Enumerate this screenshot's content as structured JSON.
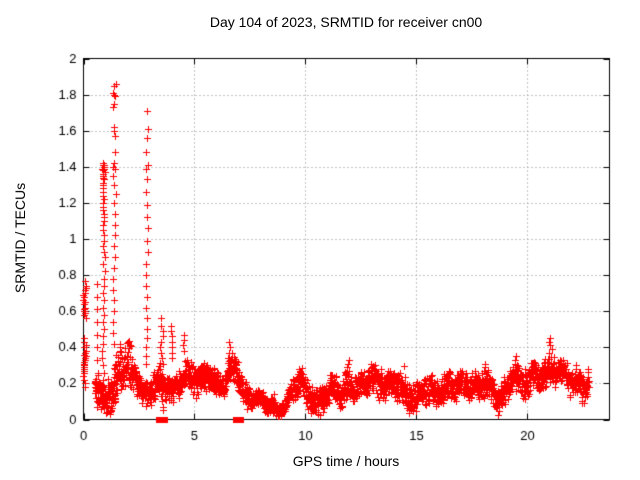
{
  "chart_data": {
    "type": "scatter",
    "title": "Day 104 of 2023, SRMTID for receiver cn00",
    "xlabel": "GPS time / hours",
    "ylabel": "SRMTID / TECUs",
    "xlim": [
      0,
      23.7
    ],
    "ylim": [
      0,
      2
    ],
    "grid": true,
    "legend": "none",
    "marker": {
      "shape": "plus",
      "color": "#ff0000",
      "size": 7
    },
    "x_ticks": {
      "values": [
        0,
        5,
        10,
        15,
        20
      ],
      "labels": [
        "0",
        "5",
        "10",
        "15",
        "20"
      ]
    },
    "y_ticks": {
      "values": [
        0,
        0.2,
        0.4,
        0.6,
        0.8,
        1.0,
        1.2,
        1.4,
        1.6,
        1.8,
        2.0
      ],
      "labels": [
        "0",
        "0.2",
        "0.4",
        "0.6",
        "0.8",
        "1",
        "1.2",
        "1.4",
        "1.6",
        "1.8",
        "2"
      ]
    },
    "band": {
      "comment_visible_fact": "dense noisy band of ~30s samples from 0.5h to 22.8h between roughly 0.05 and 0.35 TECU",
      "x_start": 0.5,
      "x_end": 22.78,
      "dt": 0.008333,
      "noise_default": 0.09,
      "noise_regions": [
        {
          "x1": 1.05,
          "x2": 2.15,
          "s": 0.16
        },
        {
          "x1": 7.5,
          "x2": 9.4,
          "s": 0.05
        }
      ],
      "mean_keypoints": [
        [
          0.5,
          0.2
        ],
        [
          0.75,
          0.13
        ],
        [
          1.0,
          0.12
        ],
        [
          1.3,
          0.16
        ],
        [
          1.6,
          0.28
        ],
        [
          2.0,
          0.28
        ],
        [
          2.3,
          0.24
        ],
        [
          2.6,
          0.17
        ],
        [
          3.0,
          0.16
        ],
        [
          3.3,
          0.21
        ],
        [
          3.6,
          0.18
        ],
        [
          3.9,
          0.16
        ],
        [
          4.2,
          0.21
        ],
        [
          4.5,
          0.27
        ],
        [
          4.8,
          0.23
        ],
        [
          5.1,
          0.19
        ],
        [
          5.4,
          0.25
        ],
        [
          5.7,
          0.26
        ],
        [
          6.0,
          0.21
        ],
        [
          6.3,
          0.17
        ],
        [
          6.6,
          0.24
        ],
        [
          6.85,
          0.29
        ],
        [
          7.1,
          0.22
        ],
        [
          7.4,
          0.14
        ],
        [
          7.8,
          0.11
        ],
        [
          8.2,
          0.08
        ],
        [
          8.7,
          0.07
        ],
        [
          9.1,
          0.09
        ],
        [
          9.5,
          0.17
        ],
        [
          9.8,
          0.2
        ],
        [
          10.1,
          0.15
        ],
        [
          10.5,
          0.1
        ],
        [
          10.9,
          0.13
        ],
        [
          11.3,
          0.16
        ],
        [
          11.6,
          0.15
        ],
        [
          11.95,
          0.22
        ],
        [
          12.3,
          0.17
        ],
        [
          12.7,
          0.19
        ],
        [
          13.0,
          0.22
        ],
        [
          13.4,
          0.21
        ],
        [
          13.8,
          0.2
        ],
        [
          14.2,
          0.17
        ],
        [
          14.6,
          0.13
        ],
        [
          15.0,
          0.14
        ],
        [
          15.4,
          0.17
        ],
        [
          15.8,
          0.12
        ],
        [
          16.1,
          0.16
        ],
        [
          16.5,
          0.21
        ],
        [
          16.9,
          0.19
        ],
        [
          17.3,
          0.17
        ],
        [
          17.7,
          0.2
        ],
        [
          18.1,
          0.23
        ],
        [
          18.45,
          0.16
        ],
        [
          18.75,
          0.08
        ],
        [
          19.0,
          0.14
        ],
        [
          19.35,
          0.26
        ],
        [
          19.65,
          0.22
        ],
        [
          19.95,
          0.2
        ],
        [
          20.25,
          0.23
        ],
        [
          20.55,
          0.21
        ],
        [
          20.85,
          0.26
        ],
        [
          21.05,
          0.3
        ],
        [
          21.35,
          0.27
        ],
        [
          21.7,
          0.24
        ],
        [
          22.0,
          0.18
        ],
        [
          22.3,
          0.22
        ],
        [
          22.6,
          0.2
        ],
        [
          22.78,
          0.23
        ]
      ]
    },
    "spikes": [
      {
        "x": 0.05,
        "dx": 0.12,
        "ys": [
          0.77,
          0.74,
          0.73,
          0.72,
          0.7,
          0.69,
          0.68,
          0.66,
          0.65,
          0.64,
          0.62,
          0.61,
          0.6,
          0.59,
          0.58,
          0.56,
          0.45,
          0.43,
          0.41,
          0.4,
          0.38,
          0.37,
          0.36,
          0.35,
          0.34,
          0.33,
          0.32,
          0.31,
          0.3,
          0.29,
          0.28,
          0.27,
          0.26,
          0.24,
          0.22,
          0.2,
          0.18
        ]
      },
      {
        "x": 0.62,
        "dx": 0.06,
        "ys": [
          0.75,
          0.68,
          0.61,
          0.54,
          0.47,
          0.4,
          0.33,
          0.26,
          0.19,
          0.12,
          0.07
        ]
      },
      {
        "x": 0.9,
        "dx": 0.1,
        "ys": [
          1.42,
          1.41,
          1.41,
          1.4,
          1.4,
          1.39,
          1.39,
          1.38,
          1.38,
          1.37,
          1.36,
          1.35,
          1.34,
          1.33,
          1.31,
          1.3,
          1.28,
          1.26,
          1.24,
          1.22,
          1.2,
          1.18,
          1.16,
          1.14,
          1.12,
          1.1,
          1.08,
          1.05,
          1.02,
          0.99,
          0.96,
          0.93,
          0.9,
          0.86,
          0.82,
          0.78,
          0.74,
          0.7,
          0.66,
          0.62,
          0.58,
          0.54,
          0.5,
          0.46,
          0.42,
          0.38,
          0.34,
          0.3,
          0.26,
          0.22,
          0.18
        ]
      },
      {
        "x": 1.38,
        "dx": 0.14,
        "ys": [
          1.86,
          1.85,
          1.81,
          1.8,
          1.79,
          1.75,
          1.73,
          1.62,
          1.6,
          1.57,
          1.48,
          1.42,
          1.4,
          1.39,
          1.35,
          1.3,
          1.25,
          1.2,
          1.14,
          1.08,
          1.02,
          0.96,
          0.9,
          0.84,
          0.78,
          0.72,
          0.66,
          0.6,
          0.54,
          0.48,
          0.42,
          0.36,
          0.3,
          0.25,
          0.2,
          0.16,
          0.12
        ]
      },
      {
        "x": 2.86,
        "dx": 0.1,
        "ys": [
          1.71,
          1.61,
          1.56,
          1.48,
          1.41,
          1.39,
          1.33,
          1.26,
          1.19,
          1.12,
          1.06,
          0.99,
          0.93,
          0.86,
          0.8,
          0.74,
          0.68,
          0.62,
          0.56,
          0.5,
          0.45,
          0.4,
          0.35,
          0.31
        ]
      },
      {
        "x": 3.52,
        "dx": 0.16,
        "ys": [
          0.56,
          0.52,
          0.49,
          0.46,
          0.43,
          0.4,
          0.37,
          0.34,
          0.31,
          0.28,
          0.25,
          0.22,
          0.19,
          0.16,
          0.13,
          0.1,
          0.07,
          0.05
        ]
      },
      {
        "x": 3.97,
        "dx": 0.08,
        "ys": [
          0.52,
          0.49,
          0.46,
          0.43,
          0.4,
          0.37,
          0.34
        ]
      },
      {
        "x": 4.52,
        "dx": 0.12,
        "ys": [
          0.47,
          0.44,
          0.41,
          0.38
        ]
      },
      {
        "x": 6.55,
        "dx": 0.1,
        "ys": [
          0.43,
          0.4,
          0.37,
          0.34
        ]
      },
      {
        "x": 11.95,
        "dx": 0.12,
        "ys": [
          0.33,
          0.31,
          0.29,
          0.27
        ]
      },
      {
        "x": 13.0,
        "dx": 0.1,
        "ys": [
          0.31,
          0.29
        ]
      },
      {
        "x": 18.1,
        "dx": 0.12,
        "ys": [
          0.31,
          0.29
        ]
      },
      {
        "x": 19.45,
        "dx": 0.15,
        "ys": [
          0.35,
          0.33,
          0.31
        ]
      },
      {
        "x": 21.05,
        "dx": 0.18,
        "ys": [
          0.45,
          0.43,
          0.41,
          0.39,
          0.37
        ]
      }
    ],
    "zero_clusters": [
      {
        "x1": 3.41,
        "x2": 3.52,
        "n": 7
      },
      {
        "x1": 3.56,
        "x2": 3.66,
        "n": 6
      },
      {
        "x1": 6.88,
        "x2": 7.08,
        "n": 8
      }
    ]
  },
  "style": {
    "marker_color": "#ff0000",
    "grid_color": "#8a8a8a",
    "axis_color": "#000000",
    "background": "#ffffff"
  }
}
